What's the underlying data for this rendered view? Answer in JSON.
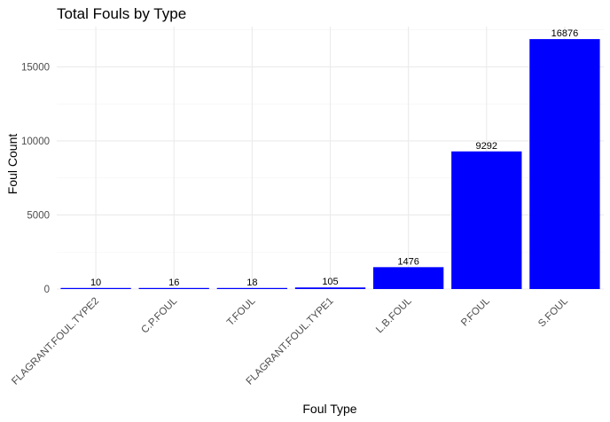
{
  "chart_data": {
    "type": "bar",
    "title": "Total Fouls by Type",
    "xlabel": "Foul Type",
    "ylabel": "Foul Count",
    "categories": [
      "FLAGRANT.FOUL.TYPE2",
      "C.P.FOUL",
      "T.FOUL",
      "FLAGRANT.FOUL.TYPE1",
      "L.B.FOUL",
      "P.FOUL",
      "S.FOUL"
    ],
    "values": [
      10,
      16,
      18,
      105,
      1476,
      9292,
      16876
    ],
    "value_labels": [
      "10",
      "16",
      "18",
      "105",
      "1476",
      "9292",
      "16876"
    ],
    "yticks": [
      0,
      5000,
      10000,
      15000
    ],
    "ytick_labels": [
      "0",
      "5000",
      "10000",
      "15000"
    ],
    "ylim": [
      0,
      17720
    ],
    "bar_color": "#0000FF",
    "grid": true,
    "legend": "none"
  }
}
